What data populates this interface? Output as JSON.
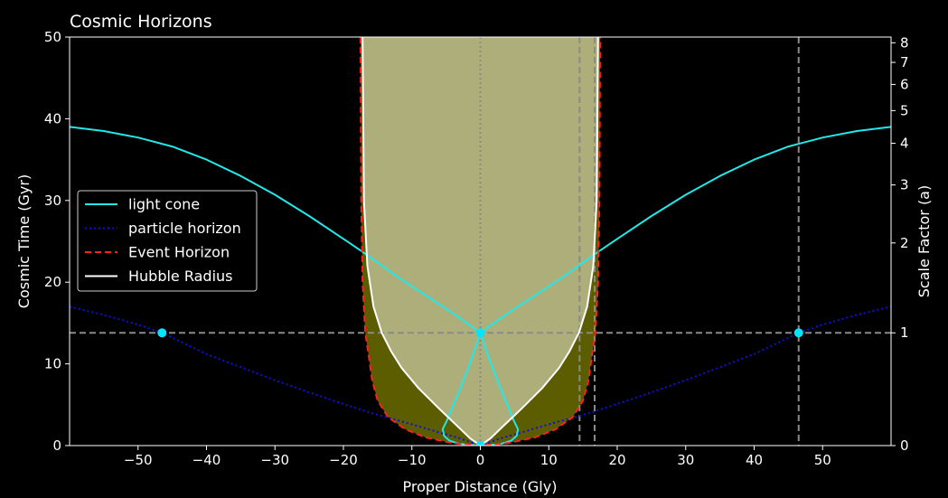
{
  "chart_data": {
    "type": "line",
    "title": "Cosmic Horizons",
    "xlabel": "Proper Distance (Gly)",
    "ylabel": "Cosmic Time (Gyr)",
    "y2label": "Scale Factor (a)",
    "xlim": [
      -60,
      60
    ],
    "ylim": [
      0,
      50
    ],
    "x_ticks": [
      -50,
      -40,
      -30,
      -20,
      -10,
      0,
      10,
      20,
      30,
      40,
      50
    ],
    "x_tick_labels": [
      "−50",
      "−40",
      "−30",
      "−20",
      "−10",
      "0",
      "10",
      "20",
      "30",
      "40",
      "50"
    ],
    "y_ticks": [
      0,
      10,
      20,
      30,
      40,
      50
    ],
    "y_tick_labels": [
      "0",
      "10",
      "20",
      "30",
      "40",
      "50"
    ],
    "y2_ticks": [
      {
        "t": 0,
        "label": "0"
      },
      {
        "t": 13.8,
        "label": "1"
      },
      {
        "t": 24.8,
        "label": "2"
      },
      {
        "t": 31.9,
        "label": "3"
      },
      {
        "t": 37.0,
        "label": "4"
      },
      {
        "t": 41.0,
        "label": "5"
      },
      {
        "t": 44.2,
        "label": "6"
      },
      {
        "t": 46.9,
        "label": "7"
      },
      {
        "t": 49.3,
        "label": "8"
      }
    ],
    "grid": false,
    "legend_position": "center-left",
    "background": "#000000",
    "shading": {
      "event_horizon_fill": "#5c5c00",
      "hubble_fill": "#aeae7a",
      "t_top": 50,
      "t_bottom": 0
    },
    "series": [
      {
        "name": "light cone",
        "style": "solid",
        "color": "#22e8e8",
        "points": [
          [
            0,
            13.8
          ],
          [
            -4,
            16.2
          ],
          [
            -8,
            18.4
          ],
          [
            -12,
            20.6
          ],
          [
            -17,
            23.6
          ],
          [
            -20,
            25.3
          ],
          [
            -25,
            28.1
          ],
          [
            -30,
            30.7
          ],
          [
            -35,
            33.0
          ],
          [
            -40,
            35.0
          ],
          [
            -45,
            36.6
          ],
          [
            -50,
            37.7
          ],
          [
            -55,
            38.5
          ],
          [
            -60,
            39.0
          ]
        ],
        "mirror": true
      },
      {
        "name": "light cone past",
        "style": "solid",
        "color": "#22e8e8",
        "points": [
          [
            0,
            13.8
          ],
          [
            -1,
            11.3
          ],
          [
            -2,
            9.0
          ],
          [
            -3,
            6.9
          ],
          [
            -4,
            4.9
          ],
          [
            -4.8,
            3.2
          ],
          [
            -5.5,
            2.0
          ],
          [
            -5.3,
            1.2
          ],
          [
            -4.5,
            0.6
          ],
          [
            -3.2,
            0.25
          ],
          [
            -1.6,
            0.06
          ],
          [
            0,
            0
          ]
        ],
        "mirror": true
      },
      {
        "name": "particle horizon",
        "style": "dotted",
        "color": "#1010d8",
        "points": [
          [
            0,
            0
          ],
          [
            -1,
            0.3
          ],
          [
            -3,
            0.9
          ],
          [
            -6,
            1.6
          ],
          [
            -10,
            2.6
          ],
          [
            -16,
            4.0
          ],
          [
            -20,
            5.1
          ],
          [
            -25,
            6.5
          ],
          [
            -30,
            8.0
          ],
          [
            -35,
            9.6
          ],
          [
            -40,
            11.2
          ],
          [
            -46.5,
            13.8
          ],
          [
            -50,
            14.8
          ],
          [
            -55,
            16.0
          ],
          [
            -60,
            17.0
          ]
        ],
        "mirror": true
      },
      {
        "name": "Event Horizon",
        "style": "dashed",
        "color": "#ff2020",
        "points": [
          [
            0,
            0
          ],
          [
            -4,
            0.3
          ],
          [
            -8,
            1.0
          ],
          [
            -11,
            2.0
          ],
          [
            -13.5,
            3.5
          ],
          [
            -15,
            5.5
          ],
          [
            -15.8,
            8.0
          ],
          [
            -16.3,
            11.0
          ],
          [
            -16.8,
            13.8
          ],
          [
            -17.2,
            20.0
          ],
          [
            -17.4,
            30.0
          ],
          [
            -17.5,
            50.0
          ]
        ],
        "mirror": true
      },
      {
        "name": "Hubble Radius",
        "style": "solid",
        "color": "#ffffff",
        "points": [
          [
            0,
            0
          ],
          [
            -1.5,
            0.9
          ],
          [
            -3.5,
            2.5
          ],
          [
            -6,
            4.5
          ],
          [
            -9,
            7.0
          ],
          [
            -11.5,
            9.5
          ],
          [
            -13,
            11.5
          ],
          [
            -14.4,
            13.8
          ],
          [
            -15.6,
            17.0
          ],
          [
            -16.5,
            22.0
          ],
          [
            -17.0,
            30.0
          ],
          [
            -17.2,
            50.0
          ]
        ],
        "mirror": true
      }
    ],
    "reference_lines": [
      {
        "orientation": "horizontal",
        "value": 13.8,
        "style": "dashed",
        "color": "#8a8a8a"
      },
      {
        "orientation": "vertical",
        "value": 0,
        "style": "dotted",
        "color": "#8a8a8a"
      },
      {
        "orientation": "vertical",
        "value": 14.5,
        "style": "dashed",
        "color": "#8a8a8a"
      },
      {
        "orientation": "vertical",
        "value": 16.7,
        "style": "dashed",
        "color": "#8a8a8a"
      },
      {
        "orientation": "vertical",
        "value": 46.5,
        "style": "dashed",
        "color": "#8a8a8a"
      }
    ],
    "markers": [
      {
        "x": -46.5,
        "t": 13.8,
        "color": "#00e5ff"
      },
      {
        "x": 0,
        "t": 13.8,
        "color": "#00e5ff"
      },
      {
        "x": 46.5,
        "t": 13.8,
        "color": "#00e5ff"
      },
      {
        "x": 0,
        "t": 0,
        "color": "#00e5ff"
      }
    ],
    "legend": [
      {
        "label": "light cone",
        "style": "solid",
        "color": "#22e8e8"
      },
      {
        "label": "particle horizon",
        "style": "dotted",
        "color": "#1010d8"
      },
      {
        "label": "Event Horizon",
        "style": "dashed",
        "color": "#ff2020"
      },
      {
        "label": "Hubble Radius",
        "style": "solid",
        "color": "#ffffff"
      }
    ]
  }
}
